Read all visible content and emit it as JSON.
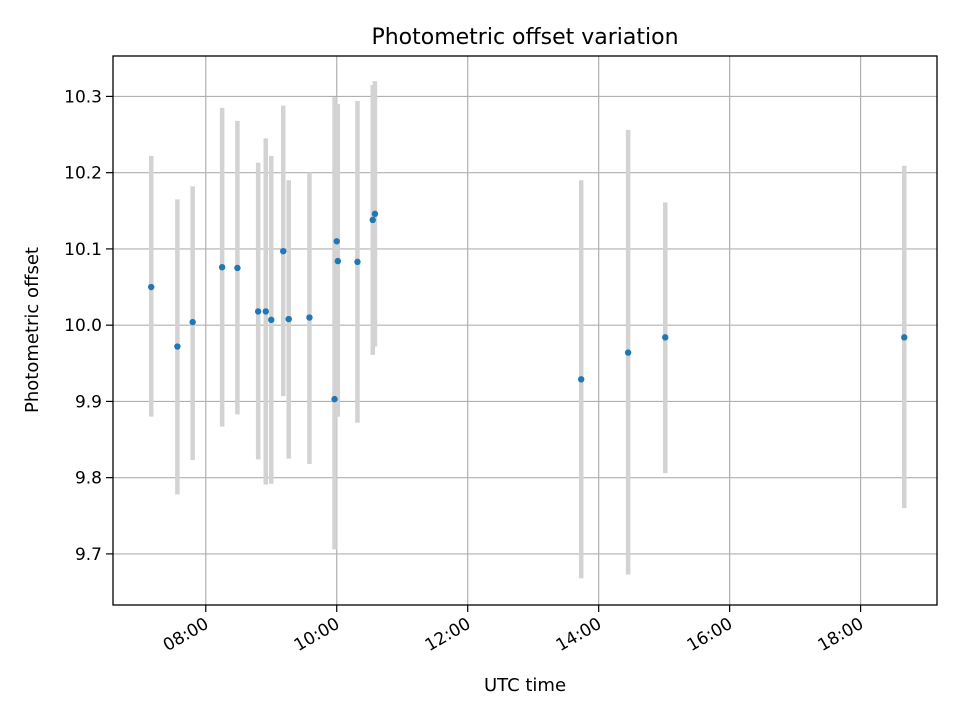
{
  "chart_data": {
    "type": "scatter",
    "title": "Photometric offset variation",
    "xlabel": "UTC time",
    "ylabel": "Photometric offset",
    "x_unit": "UTC hour of day",
    "xlim": [
      "06:35",
      "19:10"
    ],
    "ylim": [
      9.633,
      10.353
    ],
    "xticks": [
      "08:00",
      "10:00",
      "12:00",
      "14:00",
      "16:00",
      "18:00"
    ],
    "yticks": [
      "9.7",
      "9.8",
      "9.9",
      "10.0",
      "10.1",
      "10.2",
      "10.3"
    ],
    "grid": true,
    "legend": "none",
    "colors": {
      "points": "#1f77b4",
      "errorbars": "#d3d3d3",
      "grid": "#b0b0b0"
    },
    "points": [
      {
        "x": "07:10",
        "y": 10.05,
        "yerr_low": 9.88,
        "yerr_high": 10.222
      },
      {
        "x": "07:34",
        "y": 9.972,
        "yerr_low": 9.778,
        "yerr_high": 10.165
      },
      {
        "x": "07:48",
        "y": 10.004,
        "yerr_low": 9.823,
        "yerr_high": 10.182
      },
      {
        "x": "08:15",
        "y": 10.076,
        "yerr_low": 9.867,
        "yerr_high": 10.285
      },
      {
        "x": "08:29",
        "y": 10.075,
        "yerr_low": 9.883,
        "yerr_high": 10.268
      },
      {
        "x": "08:48",
        "y": 10.018,
        "yerr_low": 9.824,
        "yerr_high": 10.213
      },
      {
        "x": "08:55",
        "y": 10.018,
        "yerr_low": 9.791,
        "yerr_high": 10.245
      },
      {
        "x": "09:00",
        "y": 10.007,
        "yerr_low": 9.792,
        "yerr_high": 10.222
      },
      {
        "x": "09:11",
        "y": 10.097,
        "yerr_low": 9.907,
        "yerr_high": 10.288
      },
      {
        "x": "09:16",
        "y": 10.008,
        "yerr_low": 9.825,
        "yerr_high": 10.19
      },
      {
        "x": "09:35",
        "y": 10.01,
        "yerr_low": 9.818,
        "yerr_high": 10.2
      },
      {
        "x": "09:58",
        "y": 9.903,
        "yerr_low": 9.706,
        "yerr_high": 10.299
      },
      {
        "x": "10:00",
        "y": 10.11,
        "yerr_low": 9.88,
        "yerr_high": 10.29
      },
      {
        "x": "10:01",
        "y": 10.084,
        "yerr_low": 9.88,
        "yerr_high": 10.29
      },
      {
        "x": "10:19",
        "y": 10.083,
        "yerr_low": 9.872,
        "yerr_high": 10.294
      },
      {
        "x": "10:33",
        "y": 10.138,
        "yerr_low": 9.961,
        "yerr_high": 10.315
      },
      {
        "x": "10:35",
        "y": 10.146,
        "yerr_low": 9.972,
        "yerr_high": 10.32
      },
      {
        "x": "13:44",
        "y": 9.929,
        "yerr_low": 9.668,
        "yerr_high": 10.19
      },
      {
        "x": "14:27",
        "y": 9.964,
        "yerr_low": 9.673,
        "yerr_high": 10.256
      },
      {
        "x": "15:01",
        "y": 9.984,
        "yerr_low": 9.806,
        "yerr_high": 10.161
      },
      {
        "x": "18:40",
        "y": 9.984,
        "yerr_low": 9.76,
        "yerr_high": 10.209
      }
    ]
  }
}
